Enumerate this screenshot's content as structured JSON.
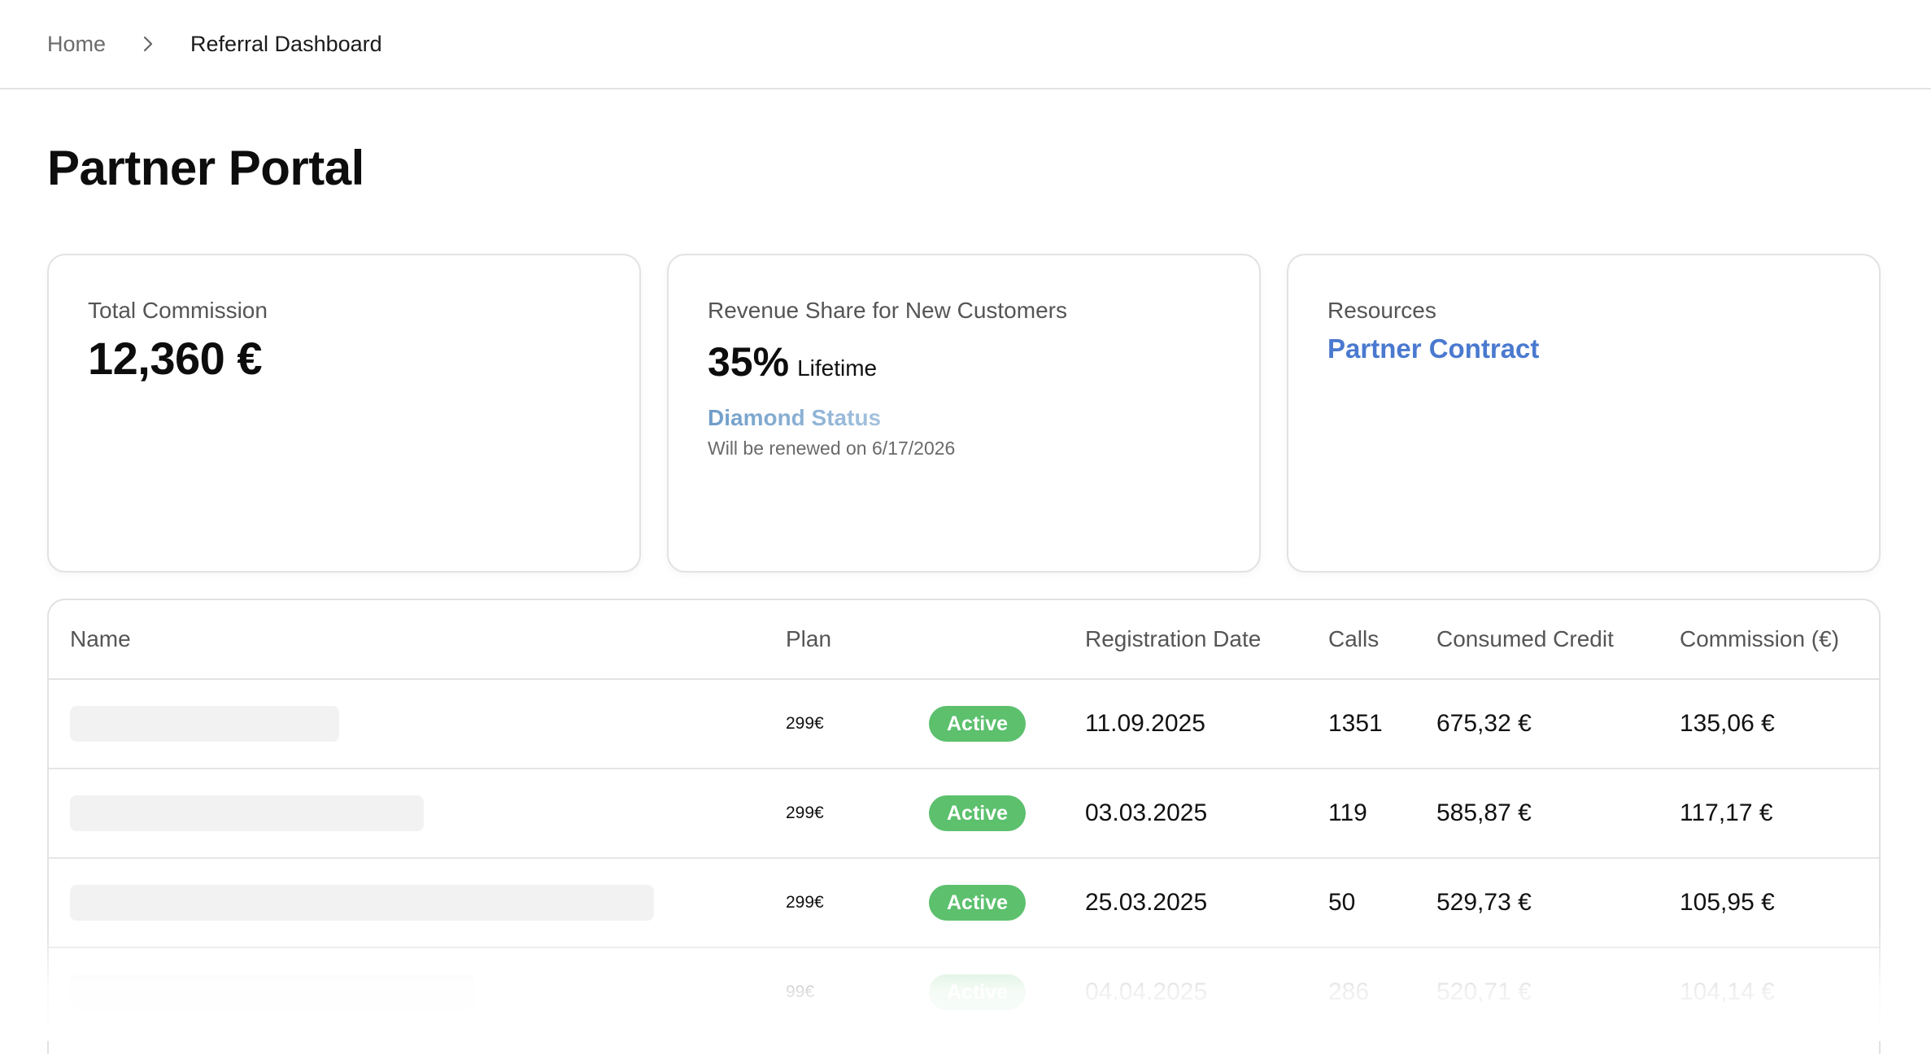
{
  "breadcrumb": {
    "home": "Home",
    "current": "Referral Dashboard"
  },
  "page": {
    "title": "Partner Portal"
  },
  "cards": {
    "commission": {
      "label": "Total Commission",
      "value": "12,360 €"
    },
    "revenue_share": {
      "label": "Revenue Share for New Customers",
      "percent": "35%",
      "term": "Lifetime",
      "status": "Diamond Status",
      "renewal": "Will be renewed on 6/17/2026"
    },
    "resources": {
      "label": "Resources",
      "link": "Partner Contract"
    }
  },
  "table": {
    "headers": {
      "name": "Name",
      "plan": "Plan",
      "registration_date": "Registration Date",
      "calls": "Calls",
      "consumed_credit": "Consumed Credit",
      "commission": "Commission (€)"
    },
    "rows": [
      {
        "plan": "299€",
        "status": "Active",
        "date": "11.09.2025",
        "calls": "1351",
        "credit": "675,32 €",
        "commission": "135,06 €"
      },
      {
        "plan": "299€",
        "status": "Active",
        "date": "03.03.2025",
        "calls": "119",
        "credit": "585,87 €",
        "commission": "117,17 €"
      },
      {
        "plan": "299€",
        "status": "Active",
        "date": "25.03.2025",
        "calls": "50",
        "credit": "529,73 €",
        "commission": "105,95 €"
      },
      {
        "plan": "99€",
        "status": "Active",
        "date": "04.04.2025",
        "calls": "286",
        "credit": "520,71 €",
        "commission": "104,14 €"
      }
    ]
  },
  "colors": {
    "status_active": "#5cc06d",
    "link": "#4a79cf",
    "diamond_status": "#7aa6d0"
  },
  "icons": {
    "breadcrumb_separator": "chevron-right-icon"
  }
}
